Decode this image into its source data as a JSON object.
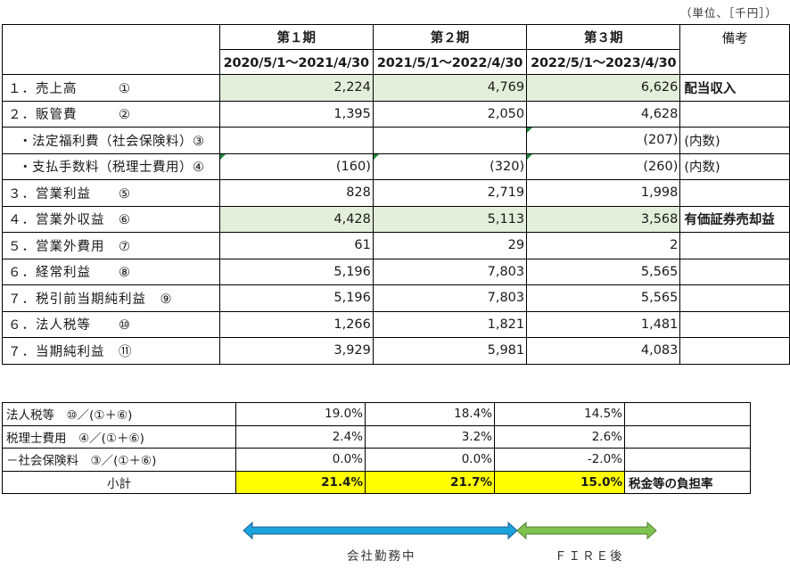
{
  "unit_note": "（単位、［千円］）",
  "headers": {
    "periods": [
      "第１期",
      "第２期",
      "第３期"
    ],
    "dates": [
      "2020/5/1～2021/4/30",
      "2021/5/1～2022/4/30",
      "2022/5/1～2023/4/30"
    ],
    "memo": "備考"
  },
  "rows": [
    {
      "label": "１．売上高　　　①",
      "values": [
        "2,224",
        "4,769",
        "6,626"
      ],
      "memo": "配当収入"
    },
    {
      "label": "２．販管費　　　②",
      "values": [
        "1,395",
        "2,050",
        "4,628"
      ],
      "memo": ""
    },
    {
      "label": "・法定福利費（社会保険料）③",
      "values": [
        "",
        "",
        "(207)"
      ],
      "memo": "(内数)"
    },
    {
      "label": "・支払手数料（税理士費用）④",
      "values": [
        "(160)",
        "(320)",
        "(260)"
      ],
      "memo": "(内数)"
    },
    {
      "label": "３．営業利益　　⑤",
      "values": [
        "828",
        "2,719",
        "1,998"
      ],
      "memo": ""
    },
    {
      "label": "４．営業外収益　⑥",
      "values": [
        "4,428",
        "5,113",
        "3,568"
      ],
      "memo": "有価証券売却益"
    },
    {
      "label": "５．営業外費用　⑦",
      "values": [
        "61",
        "29",
        "2"
      ],
      "memo": ""
    },
    {
      "label": "６．経常利益　　⑧",
      "values": [
        "5,196",
        "7,803",
        "5,565"
      ],
      "memo": ""
    },
    {
      "label": "７．税引前当期純利益　⑨",
      "values": [
        "5,196",
        "7,803",
        "5,565"
      ],
      "memo": ""
    },
    {
      "label": "６．法人税等　　⑩",
      "values": [
        "1,266",
        "1,821",
        "1,481"
      ],
      "memo": ""
    },
    {
      "label": "７．当期純利益　⑪",
      "values": [
        "3,929",
        "5,981",
        "4,083"
      ],
      "memo": ""
    }
  ],
  "ratios": [
    {
      "label": "法人税等　⑩／(①＋⑥)",
      "values": [
        "19.0%",
        "18.4%",
        "14.5%"
      ],
      "memo": ""
    },
    {
      "label": "税理士費用　④／(①＋⑥)",
      "values": [
        "2.4%",
        "3.2%",
        "2.6%"
      ],
      "memo": ""
    },
    {
      "label": "－社会保険料　③／(①＋⑥)",
      "values": [
        "0.0%",
        "0.0%",
        "-2.0%"
      ],
      "memo": ""
    }
  ],
  "subtotal": {
    "label": "小計",
    "values": [
      "21.4%",
      "21.7%",
      "15.0%"
    ],
    "memo": "税金等の負担率"
  },
  "timeline": {
    "working": "会社勤務中",
    "fire": "ＦＩＲＥ後",
    "working_color": "#1aa3dd",
    "fire_color": "#7fc24f"
  },
  "colors": {
    "highlight_green": "#e3efda",
    "highlight_yellow": "#ffff00"
  }
}
